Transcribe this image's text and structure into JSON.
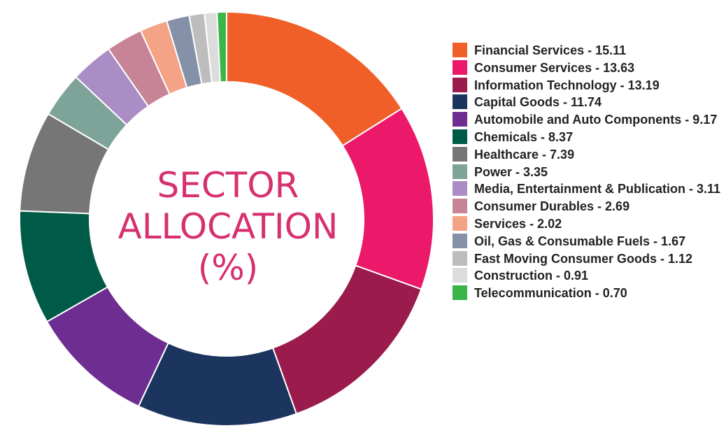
{
  "chart_data": {
    "type": "pie",
    "title": [
      "SECTOR",
      "ALLOCATION",
      "(%)"
    ],
    "legend_position": "right",
    "slices": [
      {
        "label": "Financial Services",
        "value": 15.11,
        "legend_text": "Financial Services - 15.11",
        "color": "#f05f28"
      },
      {
        "label": "Consumer Services",
        "value": 13.63,
        "legend_text": "Consumer Services - 13.63",
        "color": "#ec1869"
      },
      {
        "label": "Information Technology",
        "value": 13.19,
        "legend_text": "Information Technology - 13.19",
        "color": "#9a1b4c"
      },
      {
        "label": "Capital Goods",
        "value": 11.74,
        "legend_text": "Capital Goods - 11.74",
        "color": "#1b355e"
      },
      {
        "label": "Automobile and Auto Components",
        "value": 9.17,
        "legend_text": "Automobile and Auto Components - 9.17",
        "color": "#6e2d91"
      },
      {
        "label": "Chemicals",
        "value": 8.37,
        "legend_text": "Chemicals - 8.37",
        "color": "#005a48"
      },
      {
        "label": "Healthcare",
        "value": 7.39,
        "legend_text": "Healthcare - 7.39",
        "color": "#767676"
      },
      {
        "label": "Power",
        "value": 3.35,
        "legend_text": "Power - 3.35",
        "color": "#7ea399"
      },
      {
        "label": "Media, Entertainment & Publication",
        "value": 3.11,
        "legend_text": "Media, Entertainment & Publication - 3.11",
        "color": "#a98dc4"
      },
      {
        "label": "Consumer Durables",
        "value": 2.69,
        "legend_text": "Consumer Durables - 2.69",
        "color": "#c88497"
      },
      {
        "label": "Services",
        "value": 2.02,
        "legend_text": "Services - 2.02",
        "color": "#f5a387"
      },
      {
        "label": "Oil, Gas & Consumable Fuels",
        "value": 1.67,
        "legend_text": "Oil, Gas & Consumable Fuels - 1.67",
        "color": "#8491a8"
      },
      {
        "label": "Fast Moving Consumer Goods",
        "value": 1.12,
        "legend_text": "Fast Moving Consumer Goods - 1.12",
        "color": "#bdbdbd"
      },
      {
        "label": "Construction",
        "value": 0.91,
        "legend_text": "Construction - 0.91",
        "color": "#dcdcdc"
      },
      {
        "label": "Telecommunication",
        "value": 0.7,
        "legend_text": "Telecommunication - 0.70",
        "color": "#3ab54a"
      }
    ]
  }
}
